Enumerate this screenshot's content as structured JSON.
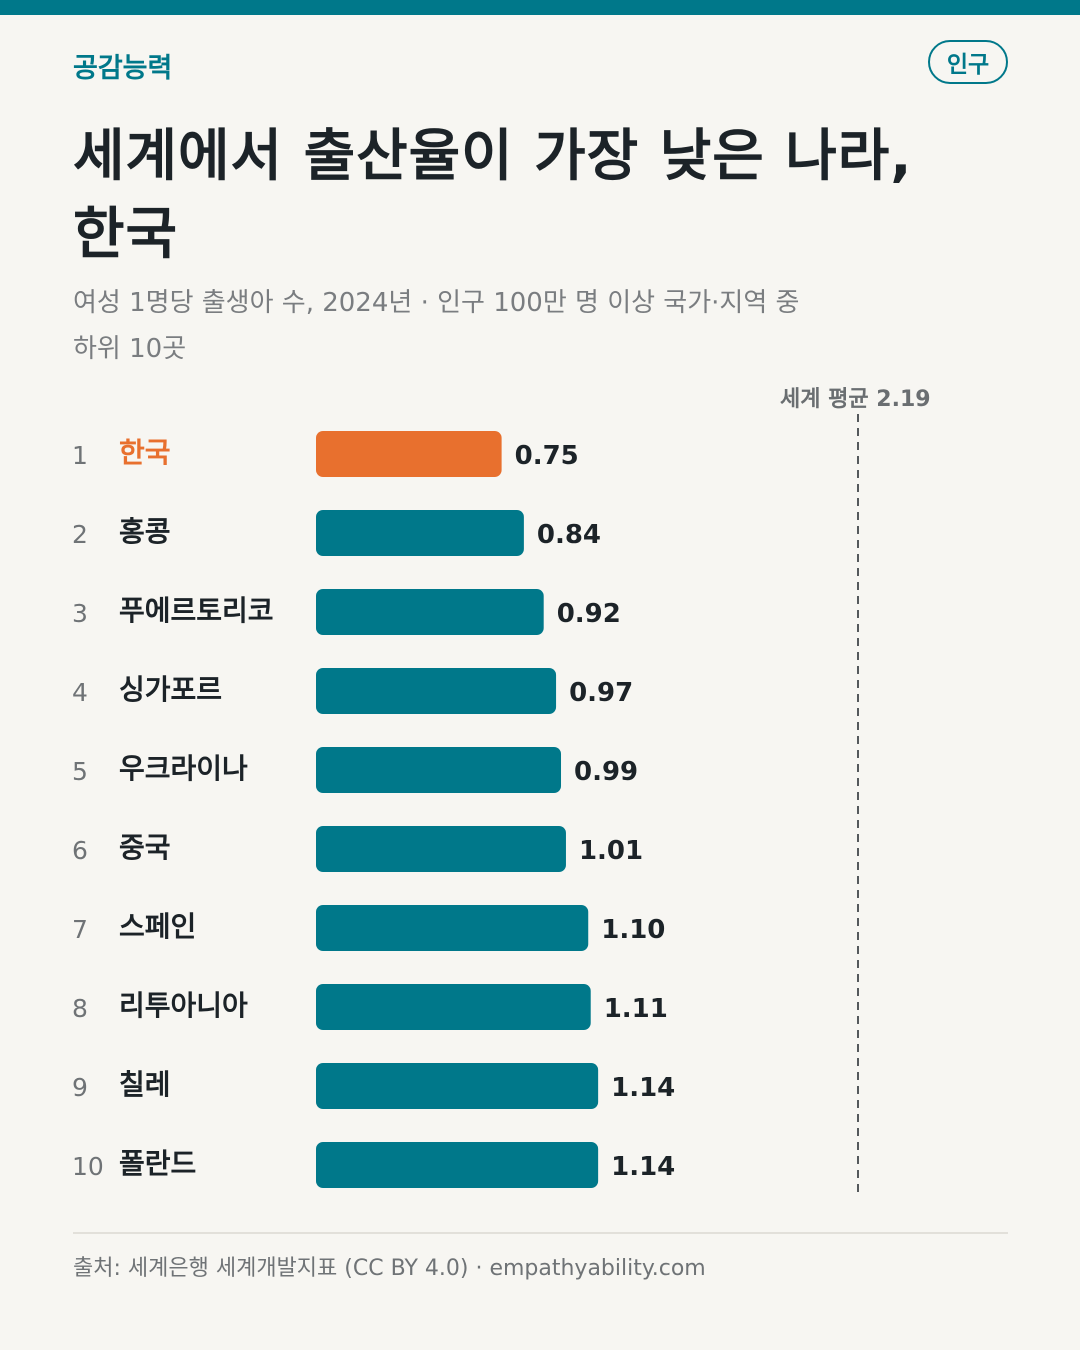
{
  "header": {
    "brand": "공감능력",
    "tag": "인구",
    "title_line1": "세계에서 출산율이 가장 낮은 나라,",
    "title_line2": "한국",
    "subtitle_line1": "여성 1명당 출생아 수, 2024년 · 인구 100만 명 이상 국가·지역 중",
    "subtitle_line2": "하위 10곳"
  },
  "colors": {
    "accent": "#00788a",
    "highlight": "#e8702e",
    "text": "#1c2328",
    "muted": "#7a7d80"
  },
  "chart_data": {
    "type": "bar",
    "orientation": "horizontal",
    "ranks": [
      "1",
      "2",
      "3",
      "4",
      "5",
      "6",
      "7",
      "8",
      "9",
      "10"
    ],
    "categories": [
      "한국",
      "홍콩",
      "푸에르토리코",
      "싱가포르",
      "우크라이나",
      "중국",
      "스페인",
      "리투아니아",
      "칠레",
      "폴란드"
    ],
    "values": [
      0.75,
      0.84,
      0.92,
      0.97,
      0.99,
      1.01,
      1.1,
      1.11,
      1.14,
      1.14
    ],
    "value_labels": [
      "0.75",
      "0.84",
      "0.92",
      "0.97",
      "0.99",
      "1.01",
      "1.10",
      "1.11",
      "1.14",
      "1.14"
    ],
    "highlight_index": 0,
    "reference_line": {
      "label": "세계 평균 2.19",
      "value": 2.19
    },
    "xlim": [
      0,
      2.19
    ],
    "grid": false
  },
  "footer": {
    "source": "출처: 세계은행 세계개발지표 (CC BY 4.0) · empathyability.com"
  }
}
